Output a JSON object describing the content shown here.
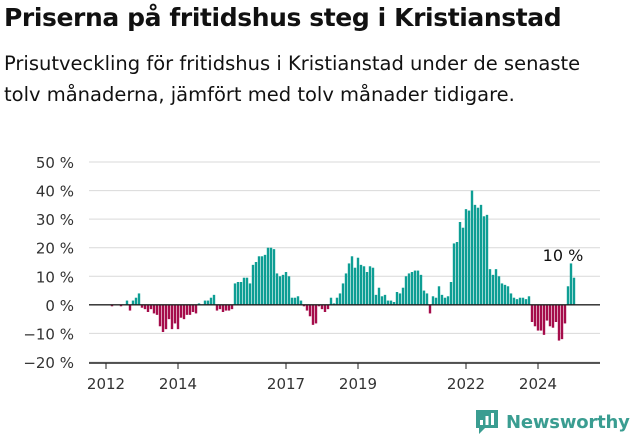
{
  "header": {
    "title": "Priserna på fritidshus steg i Kristianstad",
    "subtitle": "Prisutveckling för fritidshus i Kristianstad under de senaste tolv månaderna, jämfört med tolv månader tidigare."
  },
  "brand": {
    "name": "Newsworthy",
    "icon": "newsworthy-logo-icon",
    "color": "#3a9d91"
  },
  "colors": {
    "positive": "#0e9e94",
    "negative": "#a50d4b",
    "zero_line": "#222222",
    "grid": "#d9d9d9",
    "tick_text": "#333333"
  },
  "chart_data": {
    "type": "bar",
    "x_start": "2011-08",
    "x_end": "2025-01",
    "x_ticks": [
      {
        "label": "2012",
        "date": "2012-01"
      },
      {
        "label": "2014",
        "date": "2014-01"
      },
      {
        "label": "2017",
        "date": "2017-01"
      },
      {
        "label": "2019",
        "date": "2019-01"
      },
      {
        "label": "2022",
        "date": "2022-01"
      },
      {
        "label": "2024",
        "date": "2024-01"
      }
    ],
    "y_ticks": [
      "50 %",
      "40 %",
      "30 %",
      "20 %",
      "10 %",
      "0 %",
      "−10 %",
      "−20 %"
    ],
    "ylim": [
      -20,
      50
    ],
    "y_tick_values": [
      50,
      40,
      30,
      20,
      10,
      0,
      -10,
      -20
    ],
    "grid": "horizontal",
    "annotation": {
      "label": "10 %",
      "date": "2024-10"
    },
    "series": [
      {
        "start": "2011-08",
        "frequency": "monthly",
        "values": [
          0,
          0,
          0,
          0,
          0,
          0,
          0,
          -0.5,
          0,
          0,
          -0.5,
          0,
          1.5,
          -2,
          1.5,
          2.5,
          4,
          -1,
          -1.5,
          -2.5,
          -1.5,
          -3,
          -3.5,
          -7.5,
          -9.5,
          -8.5,
          -5,
          -8.5,
          -6.5,
          -8.5,
          -4.5,
          -5,
          -3.5,
          -3.5,
          -2.5,
          -3,
          0.5,
          0,
          1.5,
          1.5,
          2.5,
          3.5,
          -2,
          -1.5,
          -2.5,
          -2,
          -2,
          -1.5,
          7.5,
          8,
          8,
          9.5,
          9.5,
          7.5,
          14,
          15,
          17,
          17,
          17.5,
          20,
          20,
          19.5,
          11,
          10,
          10.5,
          11.5,
          10,
          2.5,
          2.5,
          3,
          1.5,
          -0.5,
          -2,
          -4,
          -7,
          -6.5,
          -0.5,
          -1.5,
          -2.5,
          -1.5,
          2.5,
          0.5,
          2.5,
          4,
          7.5,
          11,
          14.5,
          17,
          13,
          16.5,
          14,
          13.5,
          11.5,
          13.5,
          13,
          3.5,
          6,
          3,
          3.5,
          1.5,
          1.5,
          1,
          4.5,
          4,
          6,
          10,
          11,
          11.5,
          12,
          12,
          10.5,
          5,
          4,
          -3,
          3,
          2.5,
          6.5,
          3.5,
          2.5,
          3,
          8,
          21.5,
          22,
          29,
          27,
          33.5,
          33,
          40,
          35,
          34,
          35,
          31,
          31.5,
          12.5,
          10.5,
          12.5,
          10,
          7.5,
          7,
          6.5,
          4,
          2.5,
          2,
          2.5,
          2.5,
          2,
          3,
          -6,
          -7.5,
          -9,
          -9,
          -10.5,
          -5.5,
          -7.5,
          -8,
          -6,
          -12.5,
          -12,
          -6.5,
          6.5,
          14.5,
          9.5
        ]
      }
    ]
  }
}
